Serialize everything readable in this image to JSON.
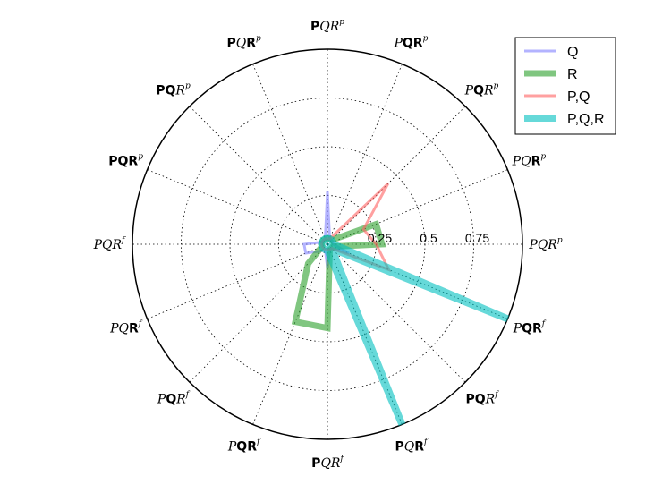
{
  "chart_data": {
    "type": "radar",
    "grid": true,
    "legend_position": "upper right",
    "rlim": [
      0,
      1
    ],
    "radial_ticks": [
      0.25,
      0.5,
      0.75
    ],
    "radial_tick_labels": [
      "0.25",
      "0.5",
      "0.75"
    ],
    "angle_labels": [
      {
        "parts": [
          "P",
          "Q",
          "R"
        ],
        "bold": [
          false,
          false,
          false
        ],
        "sup": "p"
      },
      {
        "parts": [
          "P",
          "Q",
          "R"
        ],
        "bold": [
          false,
          false,
          true
        ],
        "sup": "p"
      },
      {
        "parts": [
          "P",
          "Q",
          "R"
        ],
        "bold": [
          false,
          true,
          false
        ],
        "sup": "p"
      },
      {
        "parts": [
          "P",
          "Q",
          "R"
        ],
        "bold": [
          false,
          true,
          true
        ],
        "sup": "p"
      },
      {
        "parts": [
          "P",
          "Q",
          "R"
        ],
        "bold": [
          true,
          false,
          false
        ],
        "sup": "p"
      },
      {
        "parts": [
          "P",
          "Q",
          "R"
        ],
        "bold": [
          true,
          false,
          true
        ],
        "sup": "p"
      },
      {
        "parts": [
          "P",
          "Q",
          "R"
        ],
        "bold": [
          true,
          true,
          false
        ],
        "sup": "p"
      },
      {
        "parts": [
          "P",
          "Q",
          "R"
        ],
        "bold": [
          true,
          true,
          true
        ],
        "sup": "p"
      },
      {
        "parts": [
          "P",
          "Q",
          "R"
        ],
        "bold": [
          false,
          false,
          false
        ],
        "sup": "f"
      },
      {
        "parts": [
          "P",
          "Q",
          "R"
        ],
        "bold": [
          false,
          false,
          true
        ],
        "sup": "f"
      },
      {
        "parts": [
          "P",
          "Q",
          "R"
        ],
        "bold": [
          false,
          true,
          false
        ],
        "sup": "f"
      },
      {
        "parts": [
          "P",
          "Q",
          "R"
        ],
        "bold": [
          false,
          true,
          true
        ],
        "sup": "f"
      },
      {
        "parts": [
          "P",
          "Q",
          "R"
        ],
        "bold": [
          true,
          false,
          false
        ],
        "sup": "f"
      },
      {
        "parts": [
          "P",
          "Q",
          "R"
        ],
        "bold": [
          true,
          false,
          true
        ],
        "sup": "f"
      },
      {
        "parts": [
          "P",
          "Q",
          "R"
        ],
        "bold": [
          true,
          true,
          false
        ],
        "sup": "f"
      },
      {
        "parts": [
          "P",
          "Q",
          "R"
        ],
        "bold": [
          false,
          true,
          true
        ],
        "sup": "f"
      }
    ],
    "series": [
      {
        "name": "Q",
        "color": "#8080ff",
        "opacity": 0.6,
        "width": 3,
        "values": [
          0.03,
          0.03,
          0.03,
          0.03,
          0.27,
          0.03,
          0.03,
          0.03,
          0.12,
          0.12,
          0.05,
          0.03,
          0.12,
          0.03,
          0.03,
          0.12
        ]
      },
      {
        "name": "R",
        "color": "#2ca02c",
        "opacity": 0.6,
        "width": 7,
        "values": [
          0.28,
          0.27,
          0.03,
          0.03,
          0.03,
          0.03,
          0.03,
          0.03,
          0.03,
          0.03,
          0.14,
          0.43,
          0.43,
          0.03,
          0.03,
          0.03
        ]
      },
      {
        "name": "P,Q",
        "color": "#ff6060",
        "opacity": 0.6,
        "width": 3,
        "values": [
          0.25,
          0.2,
          0.44,
          0.03,
          0.03,
          0.03,
          0.03,
          0.03,
          0.03,
          0.03,
          0.03,
          0.03,
          0.03,
          0.03,
          0.03,
          0.34
        ]
      },
      {
        "name": "P,Q,R",
        "color": "#00c0c0",
        "opacity": 0.6,
        "width": 8,
        "values": [
          0.03,
          0.03,
          0.03,
          0.03,
          0.03,
          0.03,
          0.03,
          0.03,
          0.03,
          0.03,
          0.03,
          0.03,
          0.03,
          1.0,
          0.03,
          1.0
        ]
      }
    ]
  }
}
